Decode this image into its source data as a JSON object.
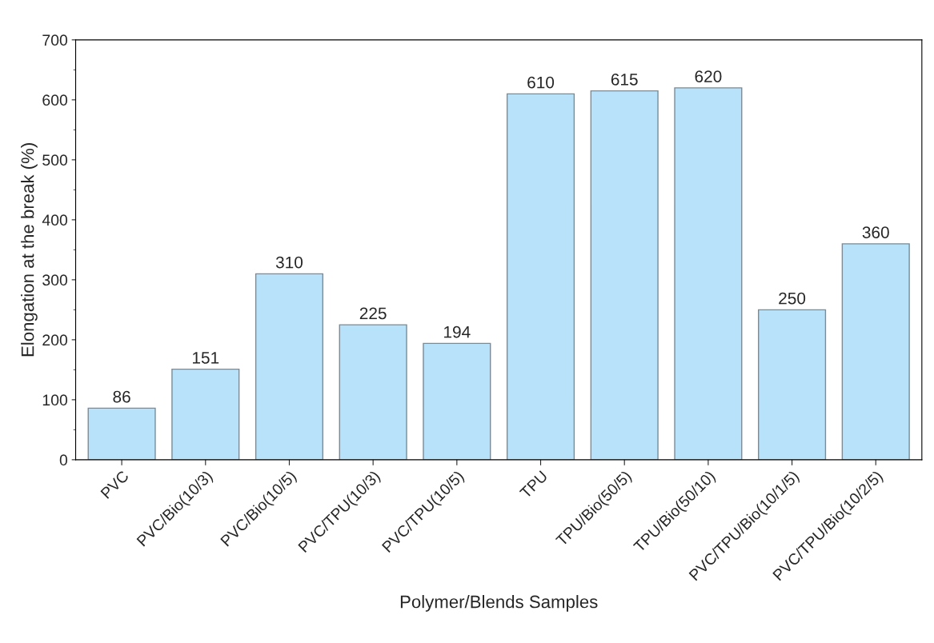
{
  "chart_data": {
    "type": "bar",
    "xlabel": "Polymer/Blends Samples",
    "ylabel": "Elongation at the break (%)",
    "categories": [
      "PVC",
      "PVC/Bio(10/3)",
      "PVC/Bio(10/5)",
      "PVC/TPU(10/3)",
      "PVC/TPU(10/5)",
      "TPU",
      "TPU/Bio(50/5)",
      "TPU/Bio(50/10)",
      "PVC/TPU/Bio(10/1/5)",
      "PVC/TPU/Bio(10/2/5)"
    ],
    "values": [
      86,
      151,
      310,
      225,
      194,
      610,
      615,
      620,
      250,
      360
    ],
    "color": "#b8e2fa",
    "ylim": [
      0,
      700
    ],
    "yticks": [
      0,
      100,
      200,
      300,
      400,
      500,
      600,
      700
    ],
    "data_labels": true,
    "grid": false,
    "legend": false
  }
}
